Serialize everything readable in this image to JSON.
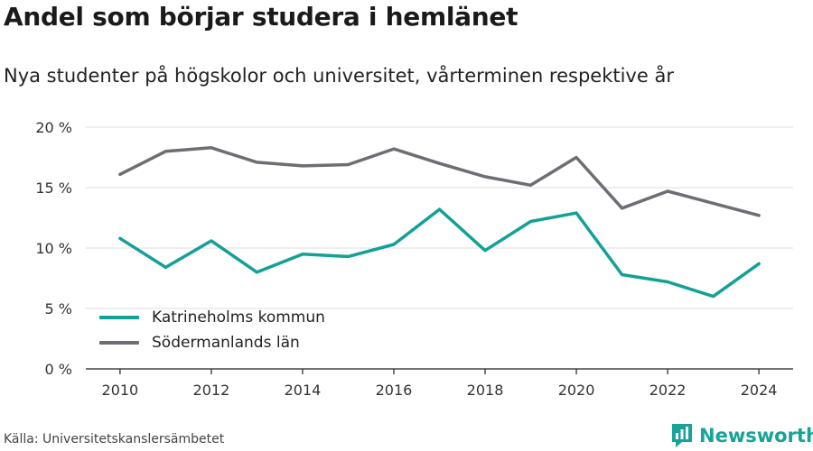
{
  "title": "Andel som börjar studera i hemlänet",
  "subtitle": "Nya studenter på högskolor och universitet, vårterminen respektive år",
  "source": "Källa: Universitetskanslersämbetet",
  "brand": {
    "name": "Newsworthy",
    "icon": "newsworthy-logo-icon",
    "color": "#17a39a"
  },
  "chart_data": {
    "type": "line",
    "x": [
      2010,
      2011,
      2012,
      2013,
      2014,
      2015,
      2016,
      2017,
      2018,
      2019,
      2020,
      2021,
      2022,
      2023,
      2024
    ],
    "xticks": [
      2010,
      2012,
      2014,
      2016,
      2018,
      2020,
      2022,
      2024
    ],
    "yticks": [
      0,
      5,
      10,
      15,
      20
    ],
    "ytick_labels": [
      "0 %",
      "5 %",
      "10 %",
      "15 %",
      "20 %"
    ],
    "ylim": [
      0,
      20
    ],
    "xlim": [
      2009.25,
      2024.75
    ],
    "grid": true,
    "legend_position": "bottom-left",
    "series": [
      {
        "name": "Katrineholms kommun",
        "color": "#13a096",
        "values": [
          10.8,
          8.4,
          10.6,
          8.0,
          9.5,
          9.3,
          10.3,
          13.2,
          9.8,
          12.2,
          12.9,
          7.8,
          7.2,
          6.0,
          8.7
        ]
      },
      {
        "name": "Södermanlands län",
        "color": "#6e6d74",
        "values": [
          16.1,
          18.0,
          18.3,
          17.1,
          16.8,
          16.9,
          18.2,
          17.0,
          15.9,
          15.2,
          17.5,
          13.3,
          14.7,
          13.7,
          12.7
        ]
      }
    ]
  }
}
